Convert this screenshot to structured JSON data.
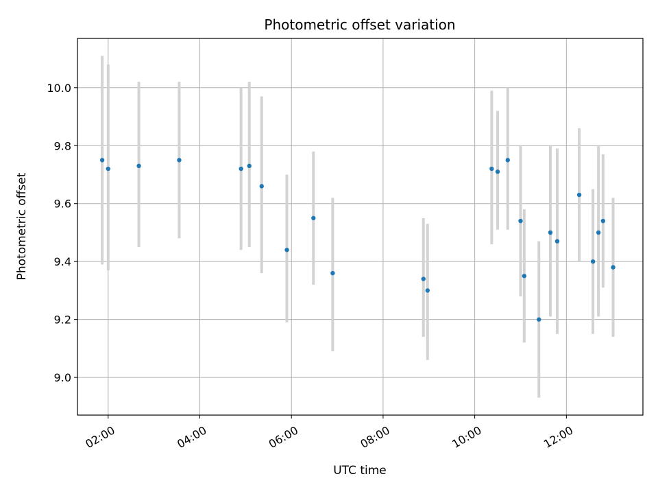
{
  "chart_data": {
    "type": "scatter",
    "title": "Photometric offset variation",
    "xlabel": "UTC time",
    "ylabel": "Photometric offset",
    "x_unit": "hours UTC",
    "xlim": [
      1.33,
      13.67
    ],
    "ylim": [
      8.87,
      10.17
    ],
    "grid": true,
    "point_color": "#1f77b4",
    "errorbar_color": "#d3d3d3",
    "x_ticks": [
      {
        "value": 2,
        "label": "02:00"
      },
      {
        "value": 4,
        "label": "04:00"
      },
      {
        "value": 6,
        "label": "06:00"
      },
      {
        "value": 8,
        "label": "08:00"
      },
      {
        "value": 10,
        "label": "10:00"
      },
      {
        "value": 12,
        "label": "12:00"
      }
    ],
    "y_ticks": [
      {
        "value": 9.0,
        "label": "9.0"
      },
      {
        "value": 9.2,
        "label": "9.2"
      },
      {
        "value": 9.4,
        "label": "9.4"
      },
      {
        "value": 9.6,
        "label": "9.6"
      },
      {
        "value": 9.8,
        "label": "9.8"
      },
      {
        "value": 10.0,
        "label": "10.0"
      }
    ],
    "points": [
      {
        "x": 1.87,
        "y": 9.75,
        "low": 9.39,
        "high": 10.11
      },
      {
        "x": 2.0,
        "y": 9.72,
        "low": 9.37,
        "high": 10.08
      },
      {
        "x": 2.67,
        "y": 9.73,
        "low": 9.45,
        "high": 10.02
      },
      {
        "x": 3.55,
        "y": 9.75,
        "low": 9.48,
        "high": 10.02
      },
      {
        "x": 4.9,
        "y": 9.72,
        "low": 9.44,
        "high": 10.0
      },
      {
        "x": 5.08,
        "y": 9.73,
        "low": 9.45,
        "high": 10.02
      },
      {
        "x": 5.35,
        "y": 9.66,
        "low": 9.36,
        "high": 9.97
      },
      {
        "x": 5.9,
        "y": 9.44,
        "low": 9.19,
        "high": 9.7
      },
      {
        "x": 6.48,
        "y": 9.55,
        "low": 9.32,
        "high": 9.78
      },
      {
        "x": 6.9,
        "y": 9.36,
        "low": 9.09,
        "high": 9.62
      },
      {
        "x": 8.88,
        "y": 9.34,
        "low": 9.14,
        "high": 9.55
      },
      {
        "x": 8.97,
        "y": 9.3,
        "low": 9.06,
        "high": 9.53
      },
      {
        "x": 10.37,
        "y": 9.72,
        "low": 9.46,
        "high": 9.99
      },
      {
        "x": 10.5,
        "y": 9.71,
        "low": 9.51,
        "high": 9.92
      },
      {
        "x": 10.72,
        "y": 9.75,
        "low": 9.51,
        "high": 10.0
      },
      {
        "x": 11.0,
        "y": 9.54,
        "low": 9.28,
        "high": 9.8
      },
      {
        "x": 11.08,
        "y": 9.35,
        "low": 9.12,
        "high": 9.58
      },
      {
        "x": 11.4,
        "y": 9.2,
        "low": 8.93,
        "high": 9.47
      },
      {
        "x": 11.65,
        "y": 9.5,
        "low": 9.21,
        "high": 9.8
      },
      {
        "x": 11.8,
        "y": 9.47,
        "low": 9.15,
        "high": 9.79
      },
      {
        "x": 12.28,
        "y": 9.63,
        "low": 9.4,
        "high": 9.86
      },
      {
        "x": 12.58,
        "y": 9.4,
        "low": 9.15,
        "high": 9.65
      },
      {
        "x": 12.7,
        "y": 9.5,
        "low": 9.21,
        "high": 9.8
      },
      {
        "x": 12.8,
        "y": 9.54,
        "low": 9.31,
        "high": 9.77
      },
      {
        "x": 13.02,
        "y": 9.38,
        "low": 9.14,
        "high": 9.62
      }
    ]
  }
}
